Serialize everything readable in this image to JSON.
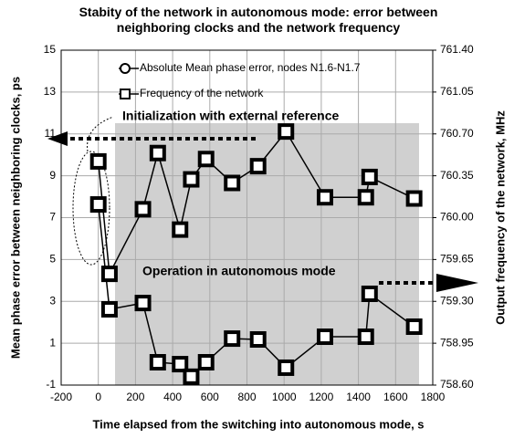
{
  "chart_data": {
    "type": "line",
    "title": "Stabity of the network in autonomous mode: error between neighboring clocks and the network frequency",
    "xlabel": "Time elapsed from the switching into autonomous mode, s",
    "ylabel": "Mean phase error between neighboring clocks, ps",
    "y2label": "Output frequency of the network, MHz",
    "annotations": [
      "Initialization with external reference",
      "Operation in autonomous mode"
    ],
    "x": [
      0,
      60,
      240,
      320,
      440,
      500,
      580,
      720,
      860,
      1010,
      1220,
      1440,
      1460,
      1700
    ],
    "series": [
      {
        "name": "Absolute Mean phase error, nodes N1.6-N1.7",
        "color": "#000000",
        "marker": "circle",
        "axis": "y",
        "values": [
          7.63,
          2.62,
          2.92,
          0.09,
          0.0,
          -0.6,
          0.09,
          1.22,
          1.18,
          -0.17,
          1.31,
          1.31,
          3.36,
          1.79
        ]
      },
      {
        "name": "Frequency of the network",
        "color": "#000000",
        "marker": "square",
        "axis": "y2",
        "values": [
          760.47,
          759.53,
          760.07,
          760.54,
          759.9,
          760.32,
          760.49,
          760.29,
          760.43,
          760.72,
          760.17,
          760.17,
          760.34,
          760.16
        ]
      }
    ],
    "xlim": [
      -200,
      1800
    ],
    "xticks": [
      -200,
      0,
      200,
      400,
      600,
      800,
      1000,
      1200,
      1400,
      1600,
      1800
    ],
    "ylim": [
      -1,
      15
    ],
    "yticks": [
      -1,
      1,
      3,
      5,
      7,
      9,
      11,
      13,
      15
    ],
    "y2lim": [
      758.6,
      761.4
    ],
    "y2ticks": [
      {
        "value": 758.6,
        "label": "758.60"
      },
      758.95,
      {
        "value": 759.3,
        "label": "759.30"
      },
      759.65,
      {
        "value": 760.0,
        "label": "760.00"
      },
      760.35,
      {
        "value": 760.7,
        "label": "760.70"
      },
      761.05,
      {
        "value": 761.4,
        "label": "761.40"
      }
    ],
    "grid": true
  }
}
